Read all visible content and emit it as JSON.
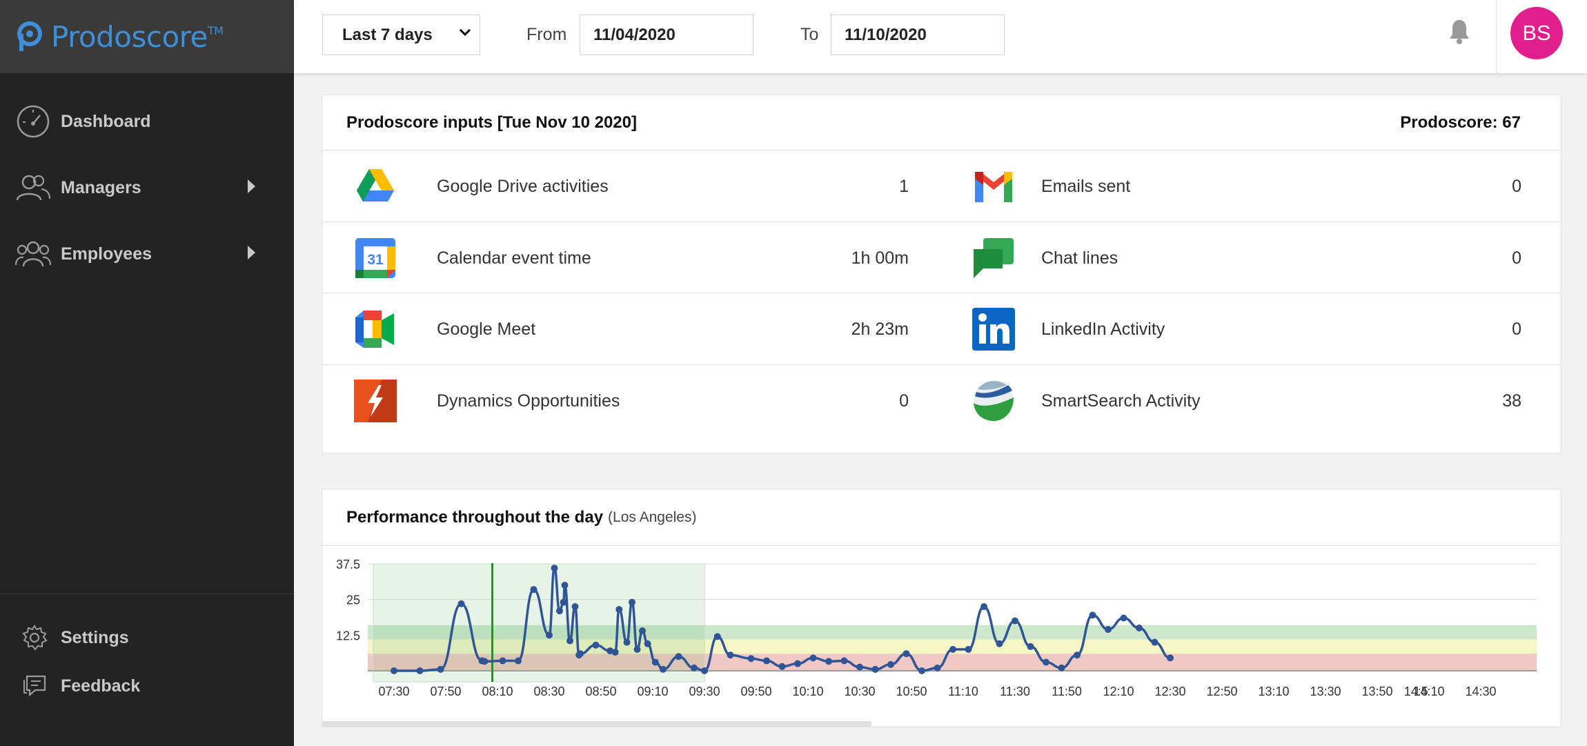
{
  "brand": {
    "name": "Prodoscore",
    "tm": "TM",
    "color": "#3f8fd8"
  },
  "sidebar": {
    "items": [
      {
        "label": "Dashboard",
        "icon": "speedometer-icon",
        "has_submenu": false
      },
      {
        "label": "Managers",
        "icon": "managers-icon",
        "has_submenu": true
      },
      {
        "label": "Employees",
        "icon": "employees-icon",
        "has_submenu": true
      }
    ],
    "bottom": [
      {
        "label": "Settings",
        "icon": "gear-icon"
      },
      {
        "label": "Feedback",
        "icon": "feedback-icon"
      }
    ]
  },
  "header": {
    "range": "Last 7 days",
    "from_label": "From",
    "from_value": "11/04/2020",
    "to_label": "To",
    "to_value": "11/10/2020",
    "avatar_initials": "BS",
    "avatar_color": "#e21d8c"
  },
  "inputs": {
    "title": "Prodoscore inputs [Tue Nov 10 2020]",
    "score_label": "Prodoscore: 67",
    "rows": [
      {
        "left": {
          "icon": "google-drive-icon",
          "name": "Google Drive activities",
          "value": "1"
        },
        "right": {
          "icon": "gmail-icon",
          "name": "Emails sent",
          "value": "0"
        }
      },
      {
        "left": {
          "icon": "google-calendar-icon",
          "name": "Calendar event time",
          "value": "1h 00m"
        },
        "right": {
          "icon": "google-chat-icon",
          "name": "Chat lines",
          "value": "0"
        }
      },
      {
        "left": {
          "icon": "google-meet-icon",
          "name": "Google Meet",
          "value": "2h 23m"
        },
        "right": {
          "icon": "linkedin-icon",
          "name": "LinkedIn Activity",
          "value": "0"
        }
      },
      {
        "left": {
          "icon": "dynamics-icon",
          "name": "Dynamics Opportunities",
          "value": "0"
        },
        "right": {
          "icon": "smartsearch-icon",
          "name": "SmartSearch Activity",
          "value": "38"
        }
      }
    ],
    "calendar_icon_text": "31"
  },
  "performance": {
    "title": "Performance throughout the day",
    "subtitle": "(Los Angeles)"
  },
  "chart_data": {
    "type": "line",
    "title": "Performance throughout the day",
    "y_ticks": [
      "37.5",
      "25",
      "12.5"
    ],
    "ylim": [
      0,
      37.5
    ],
    "x_ticks": [
      "07:30",
      "07:50",
      "08:10",
      "08:30",
      "08:50",
      "09:10",
      "09:30",
      "09:50",
      "10:10",
      "10:30",
      "10:50",
      "11:10",
      "11:30",
      "11:50",
      "12:10",
      "12:30",
      "12:50",
      "13:10",
      "13:30",
      "13:50",
      "14:10",
      "14:30",
      "14:5"
    ],
    "x_minutes": [
      0,
      10,
      18,
      26,
      34,
      35,
      42,
      48,
      54,
      60,
      62,
      64,
      65.5,
      66,
      68,
      70,
      71.5,
      72,
      78,
      83.5,
      85.5,
      87,
      90,
      92,
      94,
      96,
      98,
      101,
      104,
      110,
      116,
      120,
      125,
      130,
      138,
      144,
      150,
      156,
      162,
      168,
      174,
      180,
      186,
      192,
      198,
      204,
      210,
      216,
      222,
      228,
      234,
      240,
      246,
      252,
      258,
      264,
      270,
      276,
      282,
      288,
      294,
      300
    ],
    "series": [
      {
        "values": [
          0,
          0,
          0.5,
          23.5,
          3.5,
          3.3,
          3.5,
          3.5,
          28.5,
          12.5,
          36,
          21,
          24,
          30,
          10.5,
          22.5,
          5.5,
          6,
          9,
          7,
          6.5,
          21.5,
          10,
          24,
          7.5,
          14,
          9.5,
          3,
          0.5,
          5,
          1,
          0,
          12,
          5.5,
          4.3,
          3.5,
          1.5,
          2.5,
          4.5,
          3.3,
          3.5,
          1.3,
          0.5,
          2.2,
          6,
          0,
          1,
          7.5,
          7.5,
          22.5,
          9.5,
          17.5,
          8.5,
          3,
          1,
          5.5,
          19.5,
          14.5,
          18.5,
          15,
          10,
          4.5
        ]
      }
    ],
    "selection_range": [
      "07:30",
      "09:30"
    ],
    "current_marker": "08:08",
    "bands": [
      {
        "name": "red",
        "from": 0,
        "to": 6,
        "color": "#f1c9c4"
      },
      {
        "name": "yellow",
        "from": 6,
        "to": 11,
        "color": "#f5f5c6"
      },
      {
        "name": "green",
        "from": 11,
        "to": 16,
        "color": "#cbe8cb"
      }
    ],
    "line_color": "#2f5597"
  }
}
